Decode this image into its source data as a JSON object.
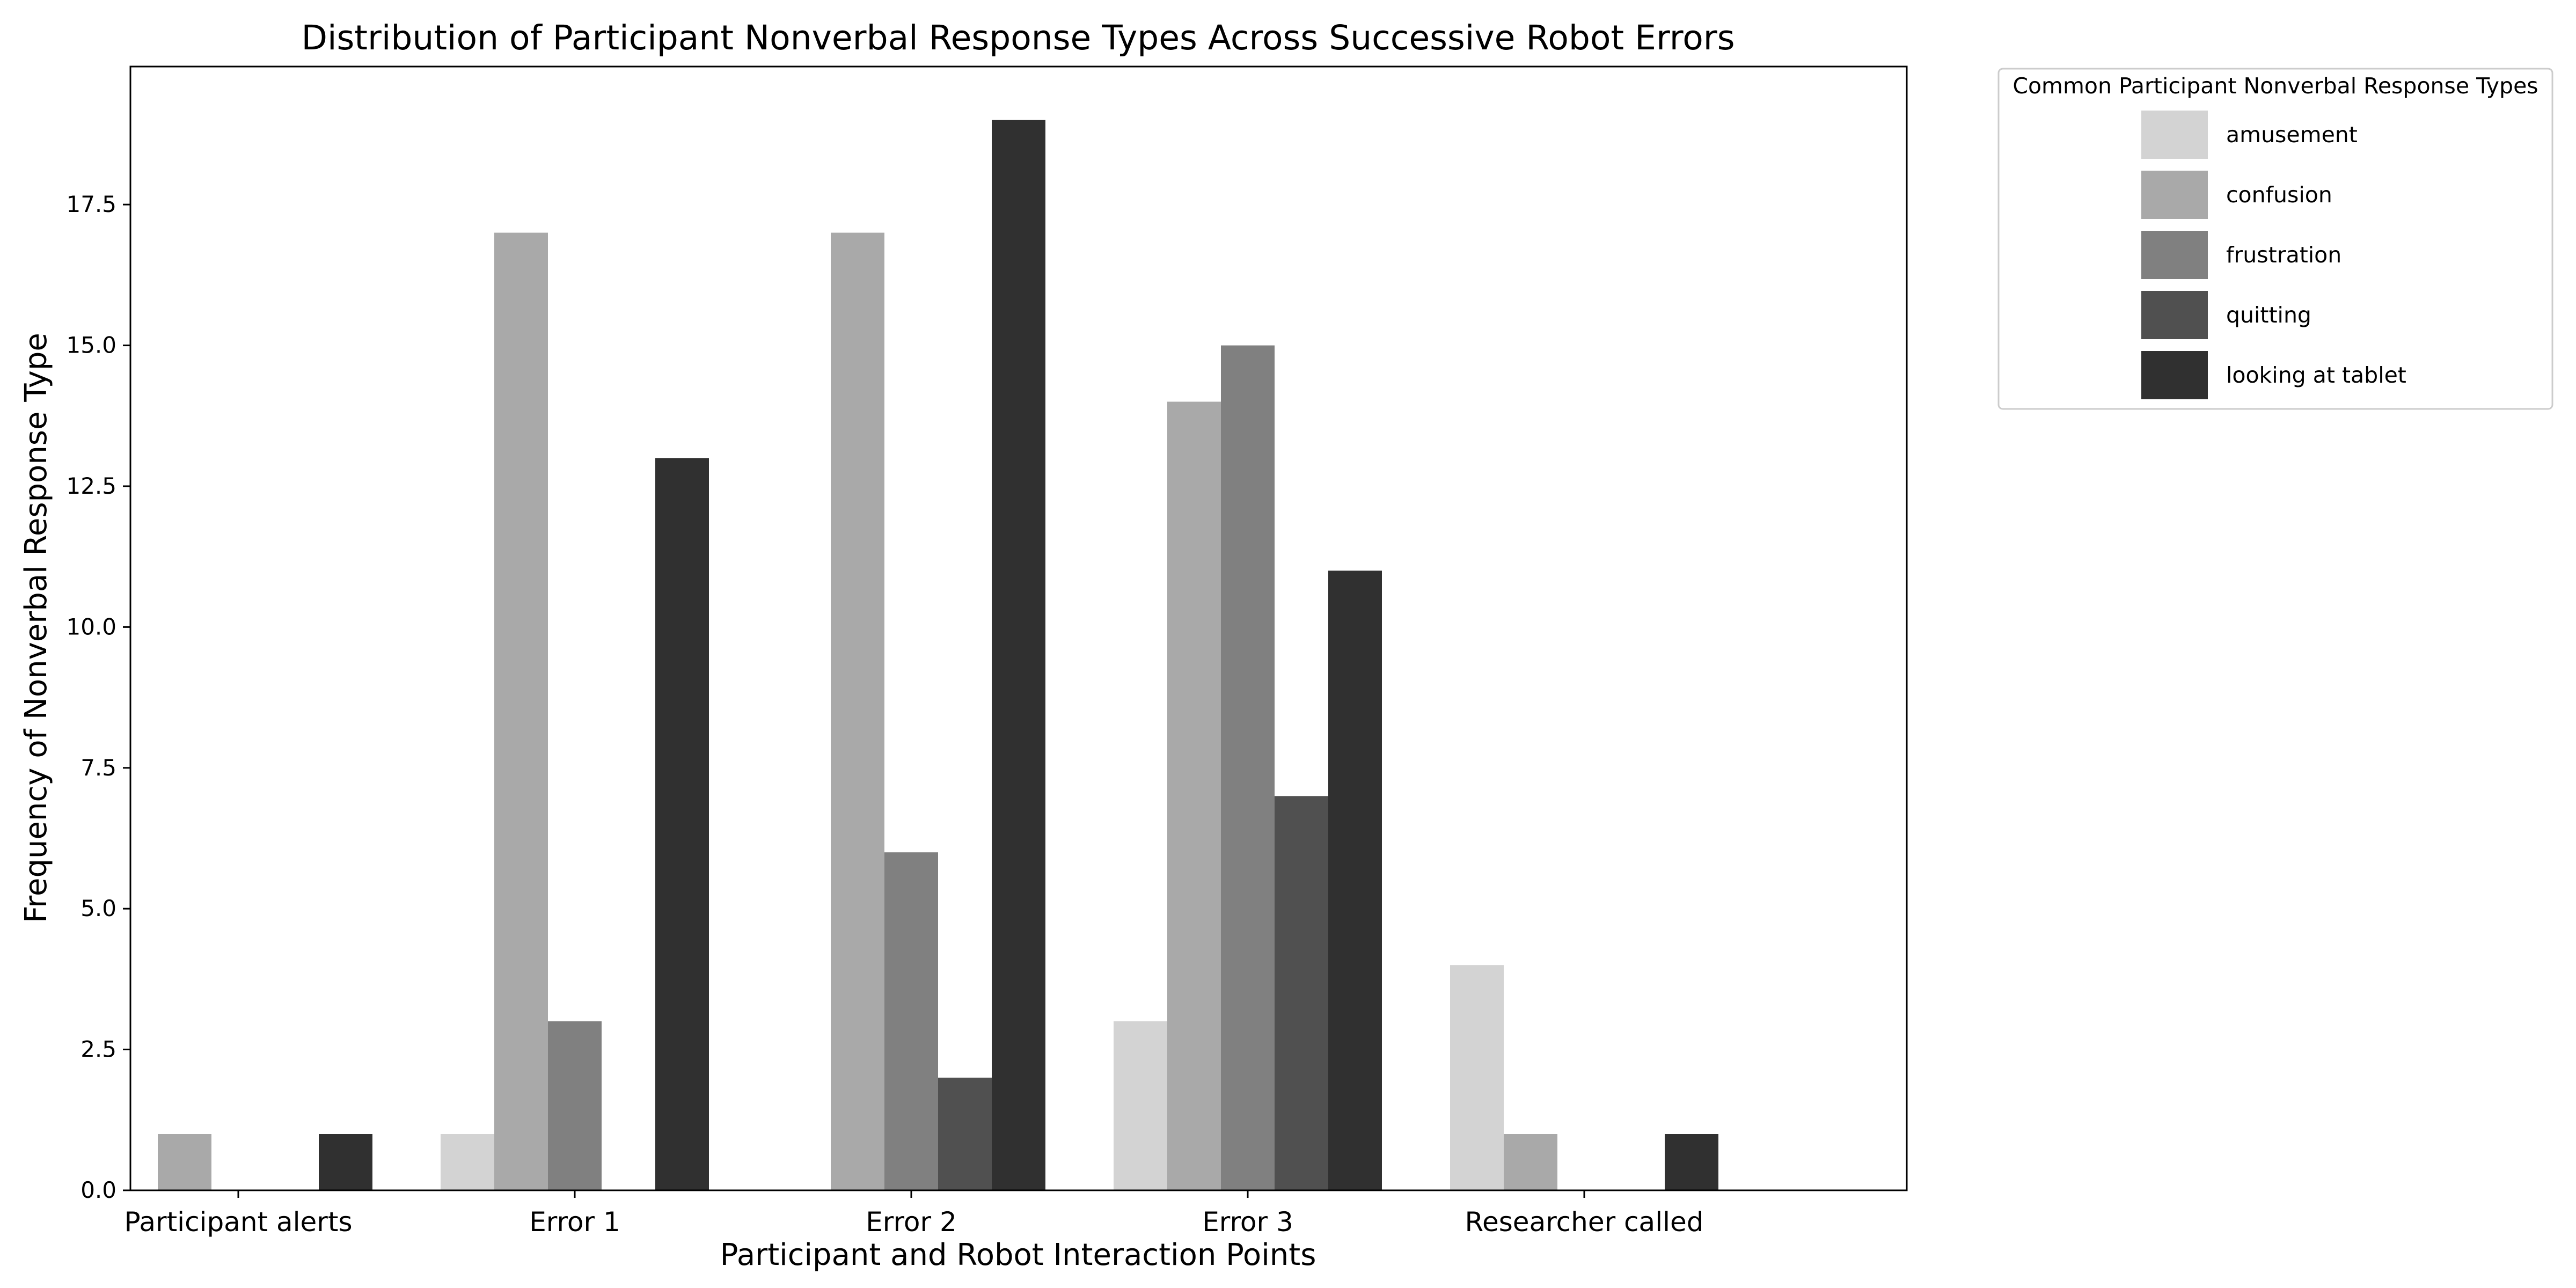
{
  "chart_data": {
    "type": "bar",
    "title": "Distribution of Participant Nonverbal Response Types Across Successive Robot Errors",
    "xlabel": "Participant and Robot Interaction Points",
    "ylabel": "Frequency of Nonverbal Response Type",
    "categories": [
      "Participant alerts",
      "Error 1",
      "Error 2",
      "Error 3",
      "Researcher called"
    ],
    "ylim": [
      0,
      19.95
    ],
    "yticks": [
      "0.0",
      "2.5",
      "5.0",
      "7.5",
      "10.0",
      "12.5",
      "15.0",
      "17.5"
    ],
    "ytick_values": [
      0,
      2.5,
      5,
      7.5,
      10,
      12.5,
      15,
      17.5
    ],
    "legend_title": "Common Participant Nonverbal Response Types",
    "legend_placement": "outside-top-right",
    "grid": false,
    "series": [
      {
        "name": "amusement",
        "color": "#d3d3d3",
        "values": [
          0,
          1,
          0,
          3,
          4
        ]
      },
      {
        "name": "confusion",
        "color": "#a9a9a9",
        "values": [
          1,
          17,
          17,
          14,
          1
        ]
      },
      {
        "name": "frustration",
        "color": "#808080",
        "values": [
          0,
          3,
          6,
          15,
          0
        ]
      },
      {
        "name": "quitting",
        "color": "#505050",
        "values": [
          0,
          0,
          2,
          7,
          0
        ]
      },
      {
        "name": "looking at tablet",
        "color": "#303030",
        "values": [
          1,
          13,
          19,
          11,
          1
        ]
      }
    ]
  }
}
